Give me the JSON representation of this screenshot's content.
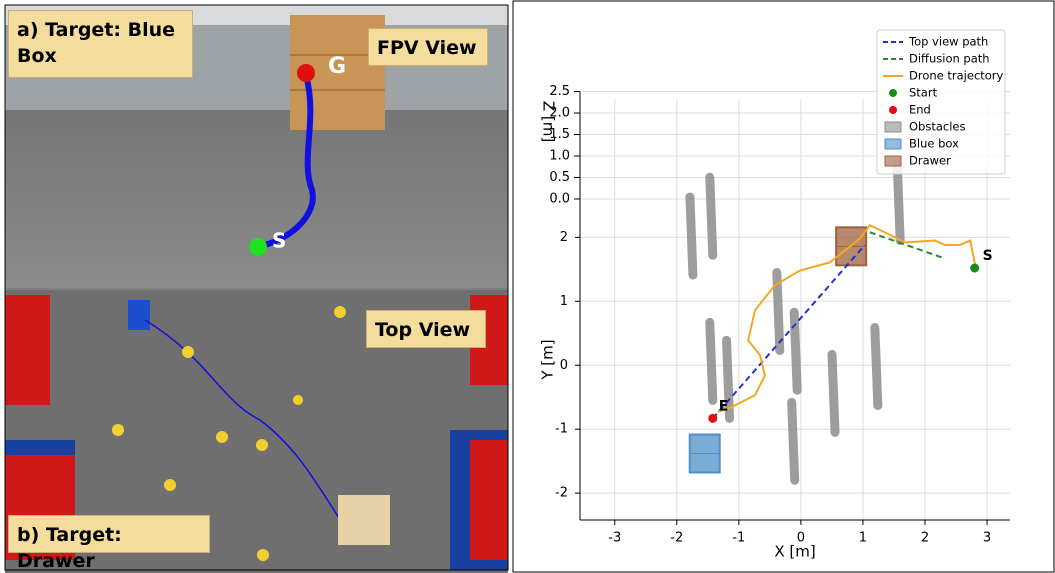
{
  "panels": {
    "fpv": {
      "title": "a) Target: Blue Box",
      "view": "FPV View",
      "goal": "G",
      "start": "S"
    },
    "top": {
      "view": "Top View",
      "title": "b) Target: Drawer"
    }
  },
  "chart_data": {
    "type": "line",
    "xlabel": "X [m]",
    "ylabel": "Y [m]",
    "zlabel": "Z [m]",
    "xlim": [
      -3.56,
      3.37
    ],
    "ylim": [
      -2.42,
      2.6
    ],
    "zlim": [
      0,
      2.5
    ],
    "xticks": [
      -3,
      -2,
      -1,
      0,
      1,
      2,
      3
    ],
    "yticks": [
      -2,
      -1,
      0,
      1,
      2
    ],
    "zticks": [
      {
        "value": 0,
        "label": "0.0"
      },
      {
        "value": 0.5,
        "label": "0.5"
      },
      {
        "value": 1,
        "label": "1.0"
      },
      {
        "value": 1.5,
        "label": "1.5"
      },
      {
        "value": 2,
        "label": "2.0"
      },
      {
        "value": 2.5,
        "label": "2.5"
      }
    ],
    "grid": true,
    "legend": "upper right",
    "series": [
      {
        "name": "Top view path",
        "color": "#1f2fd6",
        "dash": true,
        "x": [
          -1.42,
          1.03
        ],
        "y": [
          -0.83,
          1.88
        ]
      },
      {
        "name": "Diffusion path",
        "color": "#2a8a2a",
        "dash": true,
        "x": [
          1.11,
          2.32
        ],
        "y": [
          2.08,
          1.67
        ]
      },
      {
        "name": "Drone trajectory",
        "color": "#f5a623",
        "dash": false,
        "x": [
          2.81,
          2.73,
          2.56,
          2.32,
          2.16,
          1.68,
          1.35,
          1.11,
          0.95,
          0.47,
          -0.02,
          -0.42,
          -0.74,
          -0.85,
          -0.66,
          -0.58,
          -0.74,
          -1.15,
          -1.34
        ],
        "y": [
          1.56,
          1.95,
          1.88,
          1.88,
          1.95,
          1.92,
          2.08,
          2.19,
          1.98,
          1.61,
          1.48,
          1.25,
          0.86,
          0.39,
          0.16,
          -0.16,
          -0.47,
          -0.67,
          -0.73
        ]
      }
    ],
    "markers": [
      {
        "name": "Start",
        "color": "#1a8a1a",
        "x": 2.8,
        "y": 1.52,
        "label": "S"
      },
      {
        "name": "End",
        "color": "#e01010",
        "x": -1.42,
        "y": -0.83,
        "label": "E"
      }
    ],
    "obstacles": {
      "name": "Obstacles",
      "color": "#8c8c8c",
      "x": [
        -1.42,
        -1.74,
        -0.34,
        -1.42,
        -1.15,
        -0.06,
        0.55,
        1.24,
        1.6,
        -0.1
      ],
      "y": [
        1.72,
        1.41,
        0.23,
        -0.55,
        -0.83,
        -0.39,
        -1.05,
        -0.63,
        1.95,
        -1.8
      ]
    },
    "boxes": [
      {
        "name": "Blue box",
        "color": "#4f90c8",
        "x": -1.55,
        "y": -1.38
      },
      {
        "name": "Drawer",
        "color": "#a0603c",
        "x": 0.81,
        "y": 1.86
      }
    ]
  }
}
